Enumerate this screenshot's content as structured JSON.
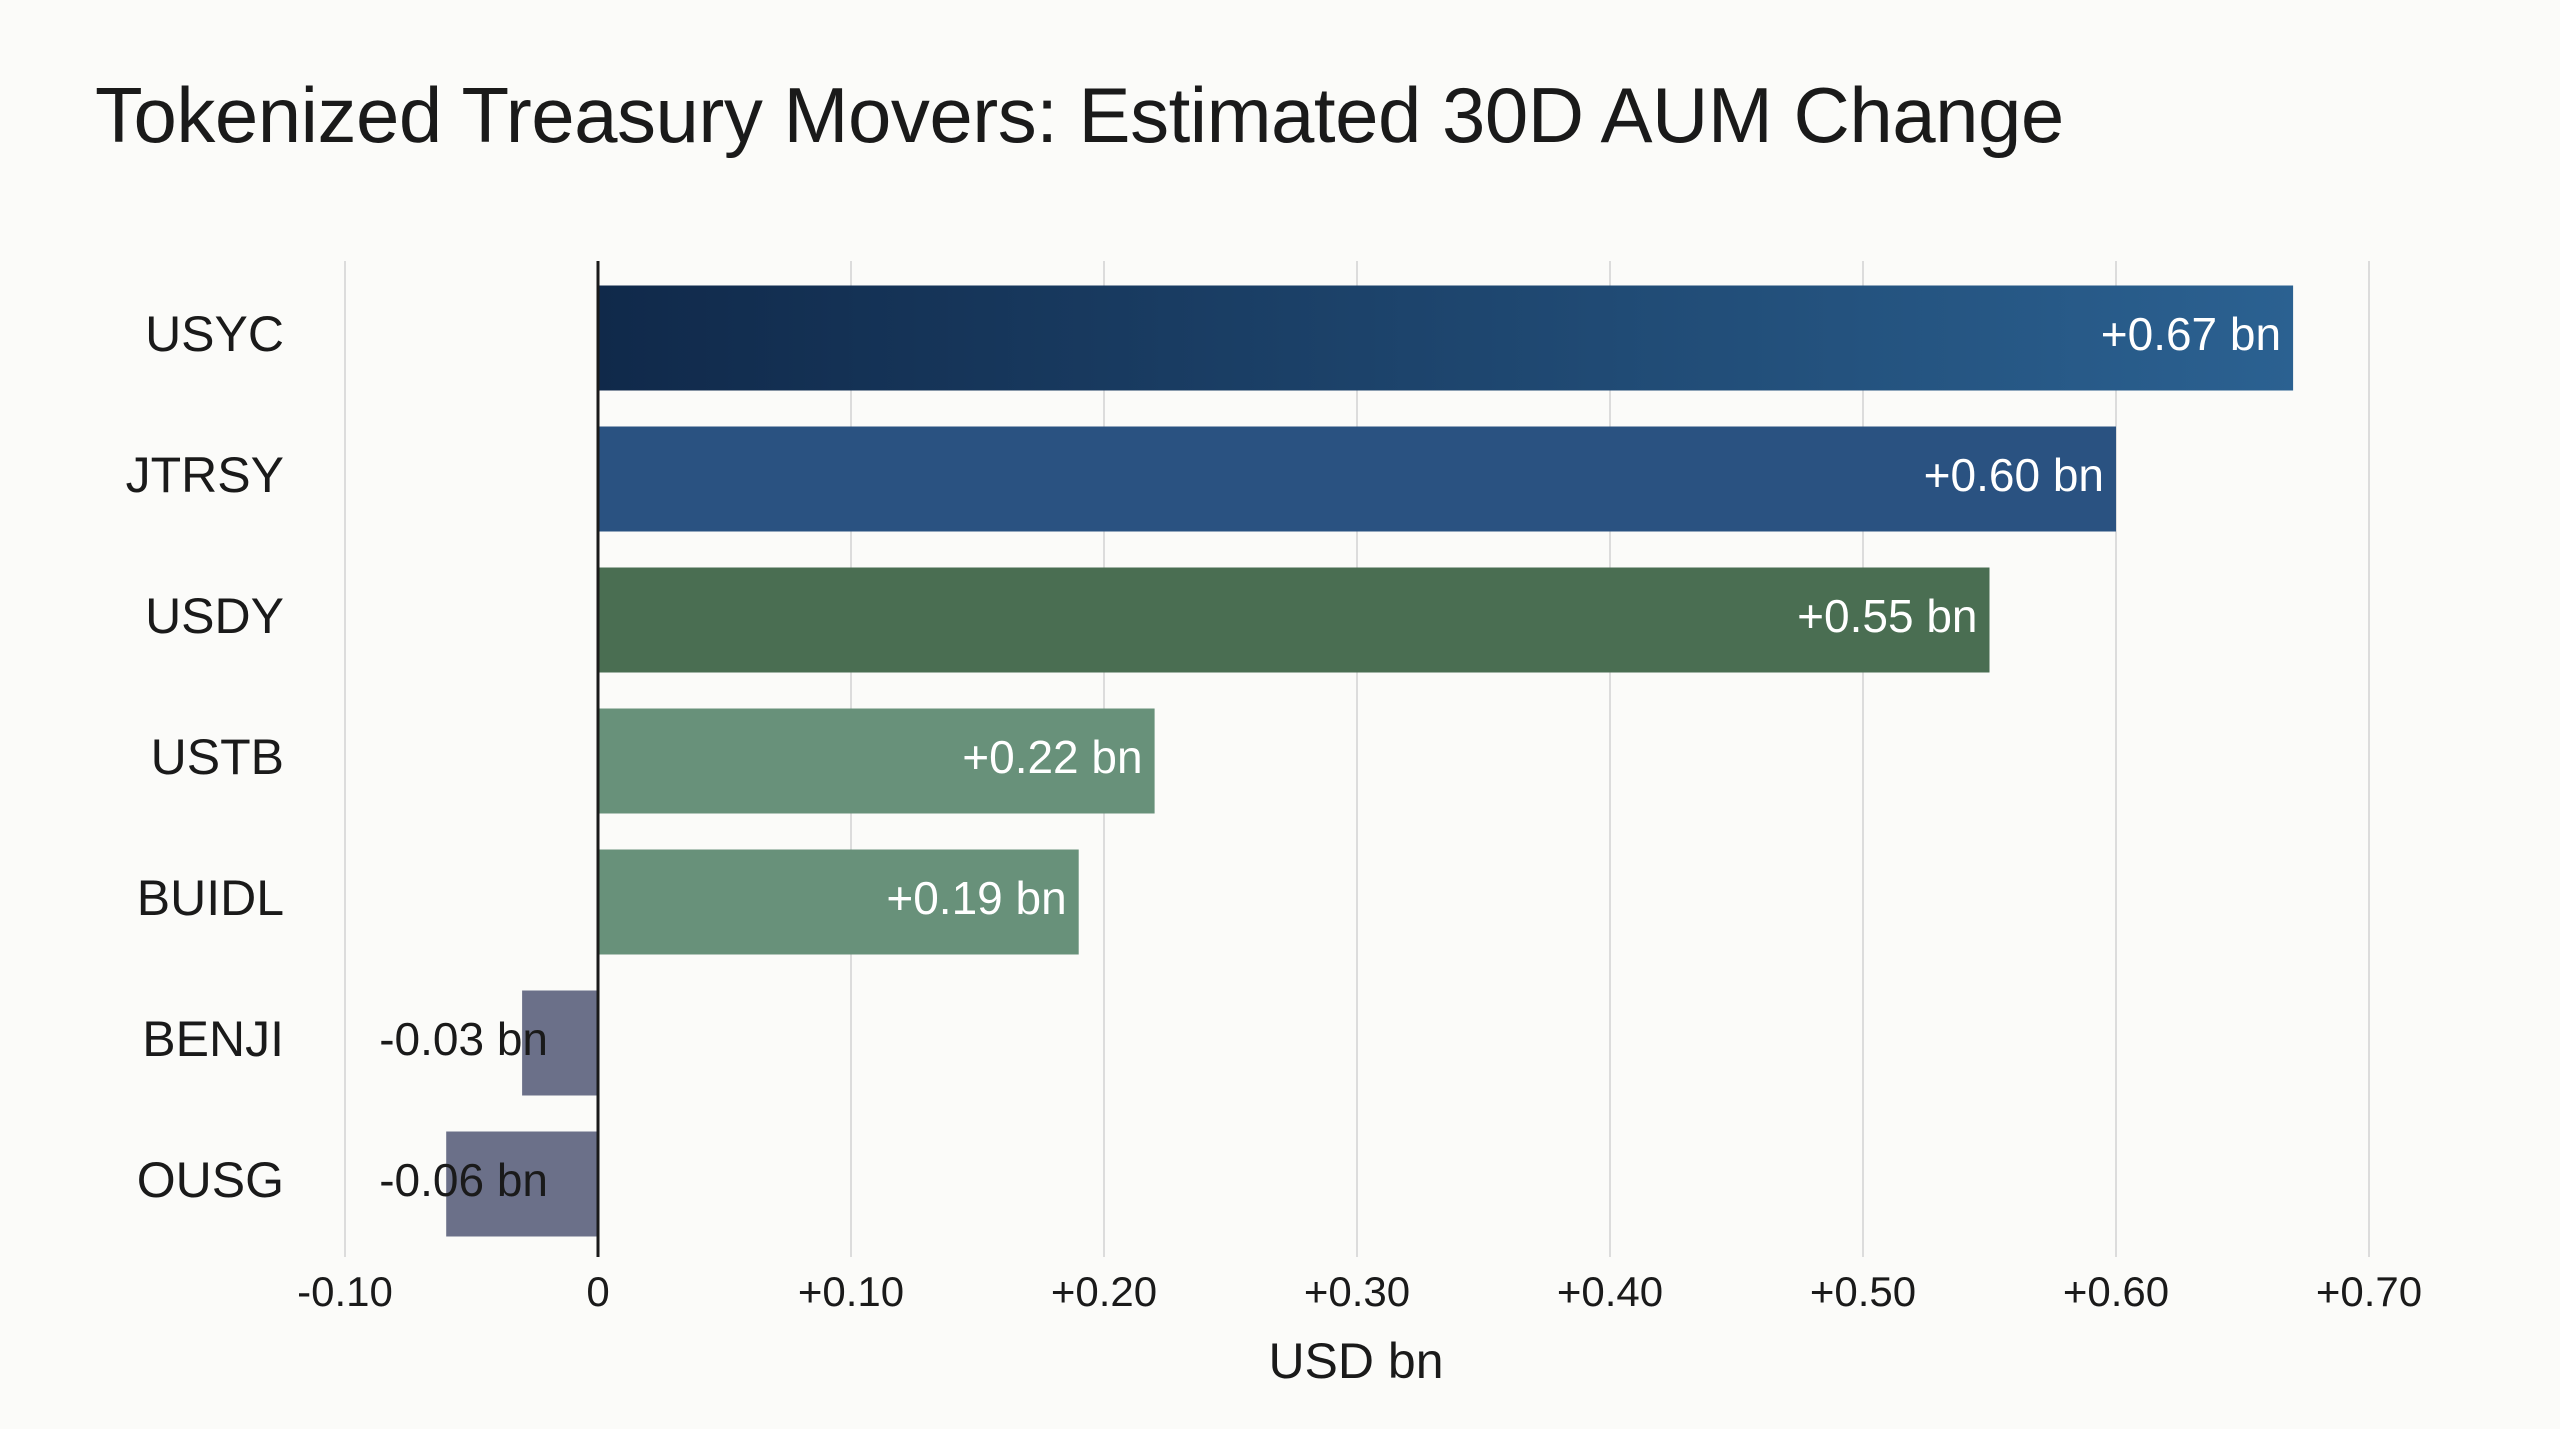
{
  "chart_data": {
    "type": "bar",
    "orientation": "horizontal",
    "title": "Tokenized Treasury Movers: Estimated 30D AUM Change",
    "xlabel": "USD bn",
    "ylabel": "",
    "xlim": [
      -0.1,
      0.7
    ],
    "grid": true,
    "categories": [
      "USYC",
      "JTRSY",
      "USDY",
      "USTB",
      "BUIDL",
      "BENJI",
      "OUSG"
    ],
    "values": [
      0.67,
      0.6,
      0.55,
      0.22,
      0.19,
      -0.03,
      -0.06
    ],
    "data_labels": [
      "+0.67 bn",
      "+0.60 bn",
      "+0.55 bn",
      "+0.22 bn",
      "+0.19 bn",
      "-0.03 bn",
      "-0.06 bn"
    ],
    "colors": [
      "#1e4470",
      "#2a5281",
      "#4a6e52",
      "#68917a",
      "#68917a",
      "#6b7089",
      "#6b7089"
    ],
    "x_ticks": [
      -0.1,
      0,
      0.1,
      0.2,
      0.3,
      0.4,
      0.5,
      0.6,
      0.7
    ],
    "x_tick_labels": [
      "-0.10",
      "0",
      "+0.10",
      "+0.20",
      "+0.30",
      "+0.40",
      "+0.50",
      "+0.60",
      "+0.70"
    ]
  }
}
